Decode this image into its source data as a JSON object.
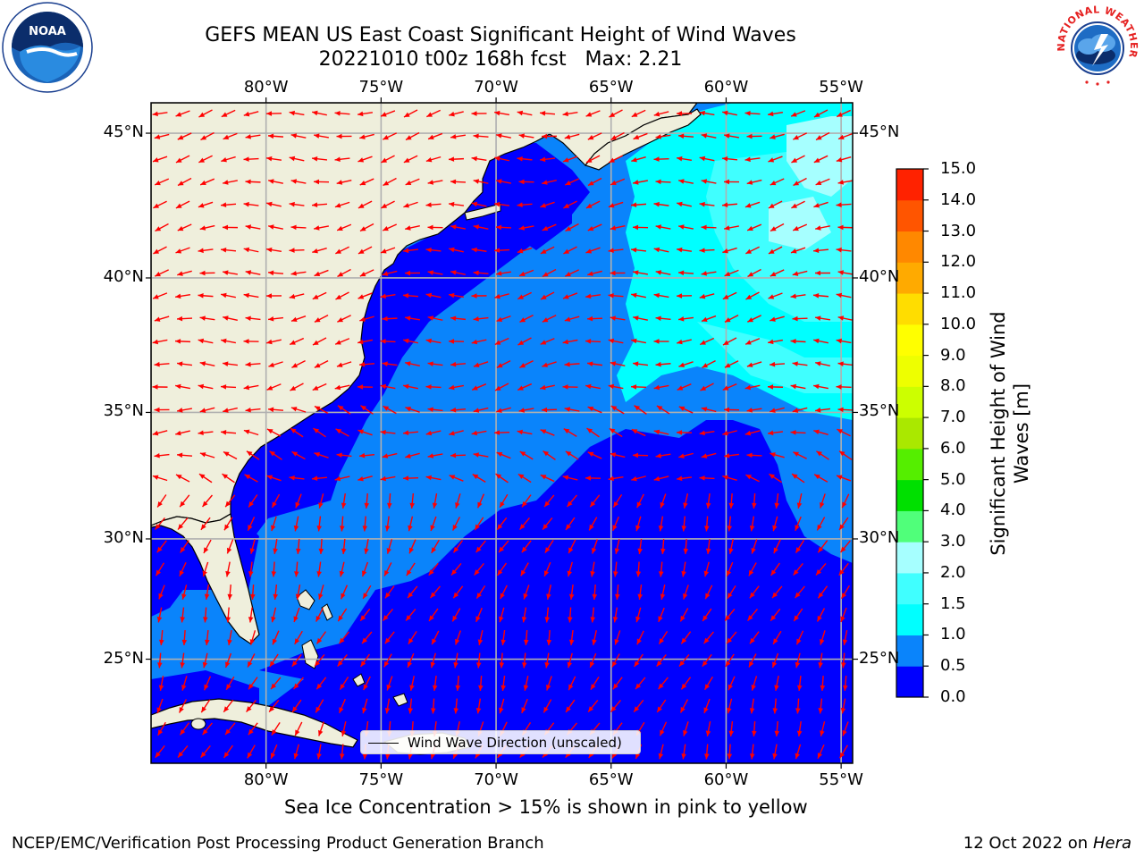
{
  "title": {
    "line1": "GEFS MEAN US East Coast Significant Height of Wind Waves",
    "line2": "20221010 t00z 168h fcst   Max: 2.21"
  },
  "logos": {
    "noaa_text": "NOAA",
    "nws_text": "NATIONAL WEATHER SERVICE"
  },
  "map": {
    "lon_ticks": [
      "80°W",
      "75°W",
      "70°W",
      "65°W",
      "60°W",
      "55°W"
    ],
    "lat_ticks": [
      "45°N",
      "40°N",
      "35°N",
      "30°N",
      "25°N"
    ],
    "lon_range": [
      -85,
      -54.5
    ],
    "lat_range": [
      20.5,
      46
    ],
    "colors": {
      "land": "#efefdc",
      "wave_0_0_5": "#0000ff",
      "wave_0_5_1": "#0a84fb",
      "wave_1_1_5": "#00ffff",
      "wave_1_5_2": "#40ffff",
      "arrow": "#ff0000",
      "grid": "#b0b0b0"
    }
  },
  "legend": {
    "label": "Wind Wave Direction (unscaled)"
  },
  "colorbar": {
    "label": "Significant Height of Wind Waves [m]",
    "ticks": [
      "0.0",
      "0.5",
      "1.0",
      "1.5",
      "2.0",
      "3.0",
      "4.0",
      "5.0",
      "6.0",
      "7.0",
      "8.0",
      "9.0",
      "10.0",
      "11.0",
      "12.0",
      "13.0",
      "14.0",
      "15.0"
    ],
    "colors": [
      "#0000ff",
      "#0a84fb",
      "#00ffff",
      "#40ffff",
      "#a6ffff",
      "#50ff7a",
      "#00e000",
      "#55ee00",
      "#aae800",
      "#ccff00",
      "#eeff00",
      "#ffff00",
      "#ffdd00",
      "#ffaa00",
      "#ff8800",
      "#ff5500",
      "#ff2200"
    ]
  },
  "note": "Sea Ice Concentration > 15% is shown in pink to yellow",
  "footer": {
    "left": "NCEP/EMC/Verification Post Processing Product Generation Branch",
    "right_prefix": "12 Oct 2022 on ",
    "right_em": "Hera"
  }
}
